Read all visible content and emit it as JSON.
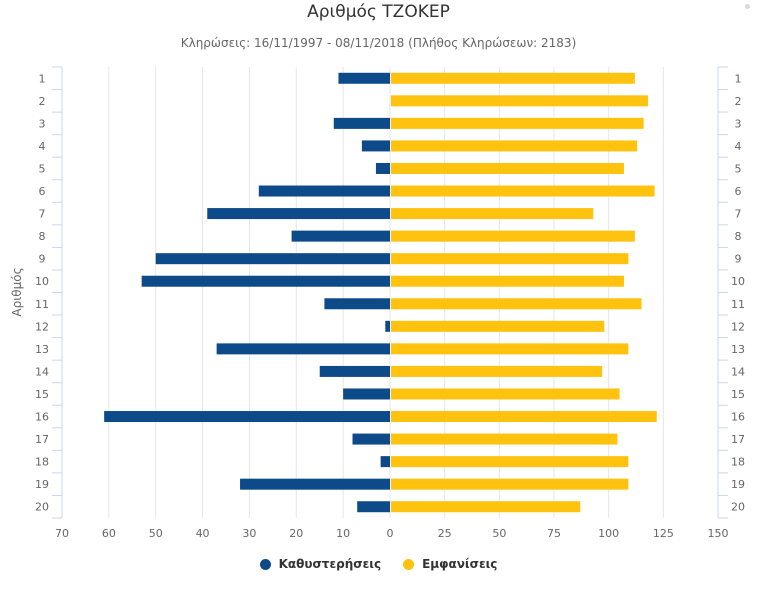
{
  "chart_data": {
    "type": "bar",
    "orientation": "horizontal-butterfly",
    "title": "Αριθμός ΤΖΟΚΕΡ",
    "subtitle": "Κληρώσεις: 16/11/1997 - 08/11/2018 (Πλήθος Κληρώσεων: 2183)",
    "ylabel": "Αριθμός",
    "categories": [
      "1",
      "2",
      "3",
      "4",
      "5",
      "6",
      "7",
      "8",
      "9",
      "10",
      "11",
      "12",
      "13",
      "14",
      "15",
      "16",
      "17",
      "18",
      "19",
      "20"
    ],
    "left_axis": {
      "min": 0,
      "max": 70,
      "ticks": [
        "70",
        "60",
        "50",
        "40",
        "30",
        "20",
        "10",
        "0"
      ],
      "tick_values": [
        70,
        60,
        50,
        40,
        30,
        20,
        10,
        0
      ]
    },
    "right_axis": {
      "min": 0,
      "max": 150,
      "ticks": [
        "25",
        "50",
        "75",
        "100",
        "125",
        "150"
      ],
      "tick_values": [
        25,
        50,
        75,
        100,
        125,
        150
      ]
    },
    "series": [
      {
        "name": "Καθυστερήσεις",
        "color": "#0d4a8a",
        "side": "left",
        "values": [
          11,
          0,
          12,
          6,
          3,
          28,
          39,
          21,
          50,
          53,
          14,
          1,
          37,
          15,
          10,
          61,
          8,
          2,
          32,
          7
        ]
      },
      {
        "name": "Εμφανίσεις",
        "color": "#ffc20e",
        "side": "right",
        "values": [
          112,
          118,
          116,
          113,
          107,
          121,
          93,
          112,
          109,
          107,
          115,
          98,
          109,
          97,
          105,
          122,
          104,
          109,
          109,
          87
        ]
      }
    ],
    "legend": "bottom-center",
    "grid": true
  }
}
